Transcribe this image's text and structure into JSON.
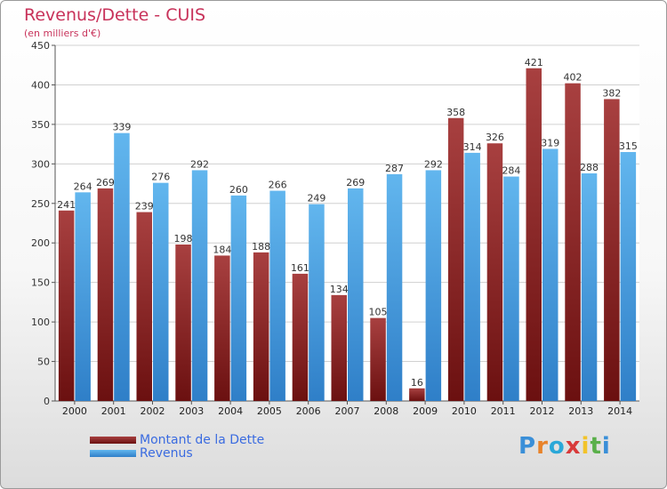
{
  "title": "Revenus/Dette - CUIS",
  "subtitle": "(en milliers d'€)",
  "logo": {
    "text": "Proxiti",
    "letters": [
      "P",
      "r",
      "o",
      "x",
      "i",
      "t",
      "i"
    ],
    "colors": [
      "#3a8fd8",
      "#e8832a",
      "#2aa8d8",
      "#d83a3a",
      "#f2c32a",
      "#5ab04a",
      "#3a8fd8"
    ]
  },
  "colors": {
    "dette": "#6b1010",
    "dette_light": "#a84040",
    "revenus": "#2f7fc8",
    "revenus_light": "#62b6ee",
    "title": "#c8325a",
    "legend_text": "#3a6be0"
  },
  "chart_data": {
    "type": "bar",
    "categories": [
      "2000",
      "2001",
      "2002",
      "2003",
      "2004",
      "2005",
      "2006",
      "2007",
      "2008",
      "2009",
      "2010",
      "2011",
      "2012",
      "2013",
      "2014"
    ],
    "series": [
      {
        "name": "Montant de la Dette",
        "values": [
          241,
          269,
          239,
          198,
          184,
          188,
          161,
          134,
          105,
          16,
          358,
          326,
          421,
          402,
          382
        ]
      },
      {
        "name": "Revenus",
        "values": [
          264,
          339,
          276,
          292,
          260,
          266,
          249,
          269,
          287,
          292,
          314,
          284,
          319,
          288,
          315
        ]
      }
    ],
    "ylim": [
      0,
      450
    ],
    "yticks": [
      0,
      50,
      100,
      150,
      200,
      250,
      300,
      350,
      400,
      450
    ],
    "grid": true,
    "legend": "bottom-left"
  }
}
